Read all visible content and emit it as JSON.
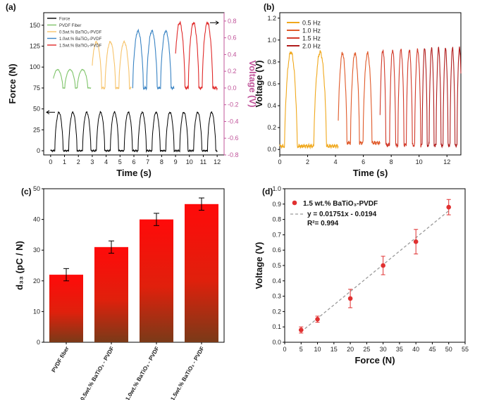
{
  "colors": {
    "force": "#000000",
    "pvdf": "#7fc46a",
    "bt05": "#f7c46c",
    "bt10": "#3a84c4",
    "bt15": "#e02a2a",
    "voltage_axis": "#c0549a",
    "hz05": "#f0a81c",
    "hz10": "#e05a2a",
    "hz15": "#d23a2a",
    "hz20": "#b01c1c",
    "bar_top": "#ff0a0a",
    "bar_bottom": "#7a3a18",
    "scatter": "#e03030",
    "fit": "#9a9a9a"
  },
  "chart_data": [
    {
      "panel": "(a)",
      "type": "line",
      "xlabel": "Time (s)",
      "ylabel_left": "Force (N)",
      "ylabel_right": "Voltage (V)",
      "xlim": [
        -0.5,
        12.5
      ],
      "ylim_left": [
        -5,
        165
      ],
      "ylim_right": [
        -0.8,
        0.9
      ],
      "x_ticks": [
        "0",
        "1",
        "2",
        "3",
        "4",
        "5",
        "6",
        "7",
        "8",
        "9",
        "10",
        "11",
        "12"
      ],
      "y_ticks_left": [
        "0",
        "25",
        "50",
        "75",
        "100",
        "125",
        "150"
      ],
      "y_ticks_right": [
        "-0.8",
        "-0.6",
        "-0.4",
        "-0.2",
        "0.0",
        "0.2",
        "0.4",
        "0.6",
        "0.8"
      ],
      "legend": [
        "Force",
        "PVDF Fiber",
        "0.5wt.% BaTiO₃-PVDF",
        "1.0wt.% BaTiO₃-PVDF",
        "1.5wt.% BaTiO₃-PVDF"
      ],
      "force_series": {
        "name": "Force",
        "period_s": 1.0,
        "start_s": 0,
        "end_s": 12,
        "baseline_N": 0,
        "peak_N": 46
      },
      "voltage_series": [
        {
          "name": "PVDF Fiber",
          "start_s": 0.2,
          "end_s": 2.9,
          "peaks_s": [
            0.5,
            1.4,
            2.3
          ],
          "baseline_V": 0.0,
          "peak_V": 0.22
        },
        {
          "name": "0.5wt.% BaTiO₃-PVDF",
          "start_s": 3.0,
          "end_s": 5.8,
          "peaks_s": [
            3.3,
            4.3,
            5.3
          ],
          "baseline_V": 0.0,
          "peak_V": 0.55
        },
        {
          "name": "1.0wt.% BaTiO₃-PVDF",
          "start_s": 5.9,
          "end_s": 8.9,
          "peaks_s": [
            6.3,
            7.3,
            8.3
          ],
          "baseline_V": 0.0,
          "peak_V": 0.68
        },
        {
          "name": "1.5wt.% BaTiO₃-PVDF",
          "start_s": 9.0,
          "end_s": 12.0,
          "peaks_s": [
            9.3,
            10.3,
            11.3
          ],
          "baseline_V": 0.0,
          "peak_V": 0.78
        }
      ]
    },
    {
      "panel": "(b)",
      "type": "line",
      "xlabel": "Time (s)",
      "ylabel": "Voltage (V)",
      "xlim": [
        0,
        13
      ],
      "ylim": [
        -0.05,
        1.25
      ],
      "x_ticks": [
        "0",
        "2",
        "4",
        "6",
        "8",
        "10",
        "12"
      ],
      "y_ticks": [
        "0.0",
        "0.2",
        "0.4",
        "0.6",
        "0.8",
        "1.0",
        "1.2"
      ],
      "series": [
        {
          "name": "0.5 Hz",
          "start_s": 0.0,
          "end_s": 4.2,
          "peaks_s": [
            0.8,
            2.9
          ],
          "baseline_V": 0.03,
          "peak_V": 0.89
        },
        {
          "name": "1.0 Hz",
          "start_s": 4.2,
          "end_s": 7.2,
          "peaks_s": [
            4.5,
            5.4,
            6.3
          ],
          "baseline_V": 0.06,
          "peak_V": 0.88
        },
        {
          "name": "1.5 Hz",
          "start_s": 7.2,
          "end_s": 10.2,
          "peaks_s": [
            7.4,
            8.1,
            8.7,
            9.3,
            9.9
          ],
          "baseline_V": 0.04,
          "peak_V": 0.91
        },
        {
          "name": "2.0 Hz",
          "start_s": 10.2,
          "end_s": 13.0,
          "peaks_s": [
            10.4,
            10.9,
            11.4,
            11.9,
            12.4,
            12.9
          ],
          "baseline_V": 0.04,
          "peak_V": 0.92
        }
      ]
    },
    {
      "panel": "(c)",
      "type": "bar",
      "ylabel": "d₃₃ (pC / N)",
      "ylim": [
        0,
        50
      ],
      "y_ticks": [
        "0",
        "10",
        "20",
        "30",
        "40",
        "50"
      ],
      "categories": [
        "PVDF fiber",
        "0.5wt.% BaTiO₃ - PVDF",
        "1.0wt.% BaTiO₃ - PVDF",
        "1.5wt.% BaTiO₃ - PVDF"
      ],
      "values": [
        22,
        31,
        40,
        45
      ],
      "errors": [
        2,
        2,
        2,
        2
      ]
    },
    {
      "panel": "(d)",
      "type": "scatter",
      "xlabel": "Force (N)",
      "ylabel": "Voltage (V)",
      "xlim": [
        0,
        55
      ],
      "ylim": [
        0,
        1.0
      ],
      "x_ticks": [
        "0",
        "5",
        "10",
        "15",
        "20",
        "25",
        "30",
        "35",
        "40",
        "45",
        "50",
        "55"
      ],
      "y_ticks": [
        "0.0",
        "0.1",
        "0.2",
        "0.3",
        "0.4",
        "0.5",
        "0.6",
        "0.7",
        "0.8",
        "0.9",
        "1.0"
      ],
      "legend_label": "1.5 wt.% BaTiO₃-PVDF",
      "fit_label": "y  = 0.01751x - 0.0194",
      "r2_label": "R²= 0.994",
      "fit": {
        "slope": 0.01751,
        "intercept": -0.0194
      },
      "x": [
        5,
        10,
        20,
        30,
        40,
        50
      ],
      "y": [
        0.08,
        0.15,
        0.285,
        0.5,
        0.655,
        0.88
      ],
      "errors": [
        0.02,
        0.02,
        0.06,
        0.06,
        0.08,
        0.05
      ]
    }
  ]
}
